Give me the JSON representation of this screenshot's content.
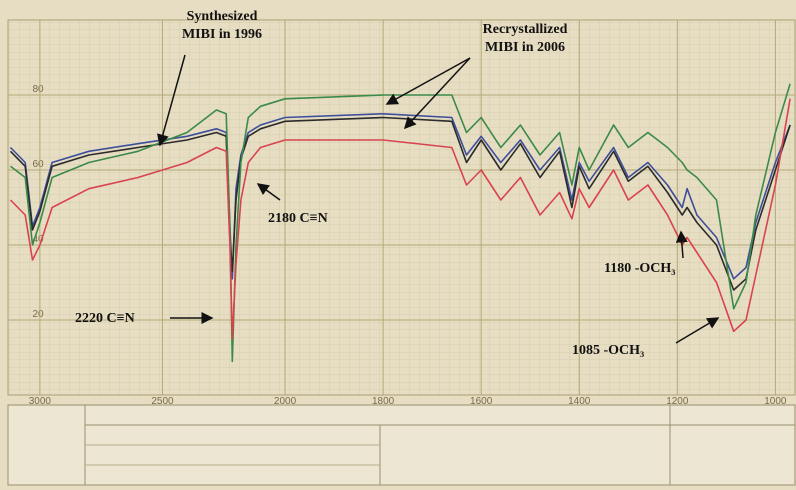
{
  "chart_data": {
    "type": "line",
    "x": [
      3120,
      3060,
      3030,
      3000,
      2950,
      2800,
      2600,
      2400,
      2280,
      2240,
      2225,
      2215,
      2200,
      2180,
      2150,
      2100,
      2000,
      1800,
      1660,
      1630,
      1600,
      1560,
      1520,
      1480,
      1440,
      1415,
      1400,
      1380,
      1330,
      1300,
      1260,
      1220,
      1190,
      1180,
      1160,
      1120,
      1085,
      1060,
      1040,
      1000,
      970
    ],
    "series": [
      {
        "color": "#3d4f9a",
        "values": [
          66,
          62,
          45,
          50,
          62,
          65,
          67,
          69,
          71,
          70,
          45,
          31,
          55,
          64,
          70,
          72,
          74,
          75,
          74,
          64,
          69,
          62,
          68,
          60,
          66,
          52,
          62,
          57,
          66,
          58,
          62,
          56,
          50,
          55,
          48,
          42,
          31,
          34,
          46,
          62,
          72
        ]
      },
      {
        "color": "#2b2b2b",
        "values": [
          65,
          61,
          44,
          49,
          61,
          64,
          66,
          68,
          70,
          69,
          42,
          33,
          52,
          63,
          69,
          71,
          73,
          74,
          73,
          62,
          68,
          60,
          67,
          58,
          65,
          50,
          61,
          55,
          65,
          57,
          61,
          54,
          48,
          50,
          46,
          40,
          28,
          31,
          44,
          60,
          72
        ]
      },
      {
        "color": "#3c8a4a",
        "values": [
          61,
          58,
          40,
          46,
          58,
          62,
          65,
          70,
          76,
          75,
          45,
          9,
          40,
          62,
          74,
          77,
          79,
          80,
          80,
          70,
          74,
          66,
          72,
          64,
          70,
          56,
          66,
          60,
          72,
          66,
          70,
          66,
          62,
          60,
          58,
          52,
          23,
          30,
          48,
          70,
          83
        ]
      },
      {
        "color": "#d9434f",
        "values": [
          52,
          48,
          36,
          40,
          50,
          55,
          58,
          62,
          66,
          65,
          40,
          15,
          35,
          52,
          62,
          66,
          68,
          68,
          66,
          56,
          60,
          52,
          58,
          48,
          54,
          47,
          55,
          50,
          60,
          52,
          56,
          48,
          40,
          42,
          38,
          30,
          17,
          20,
          32,
          56,
          79
        ]
      }
    ],
    "xlim": [
      3130,
      960
    ],
    "x_scale_change": 2000,
    "xticks": [
      3000,
      2500,
      2000,
      1800,
      1600,
      1400,
      1200,
      1000
    ],
    "ylim": [
      0,
      100
    ],
    "yticks": [
      20,
      40,
      60,
      80
    ],
    "grid": true,
    "annotations": [
      {
        "lines": [
          "Synthesized",
          "MIBI in 1996"
        ]
      },
      {
        "lines": [
          "Recrystallized",
          "MIBI in 2006"
        ]
      },
      {
        "lines": [
          "2180 C≡N"
        ]
      },
      {
        "lines": [
          "2220 C≡N"
        ]
      },
      {
        "lines": [
          "1180 -OCH₃"
        ]
      },
      {
        "lines": [
          "1085 -OCH₃"
        ]
      }
    ]
  }
}
